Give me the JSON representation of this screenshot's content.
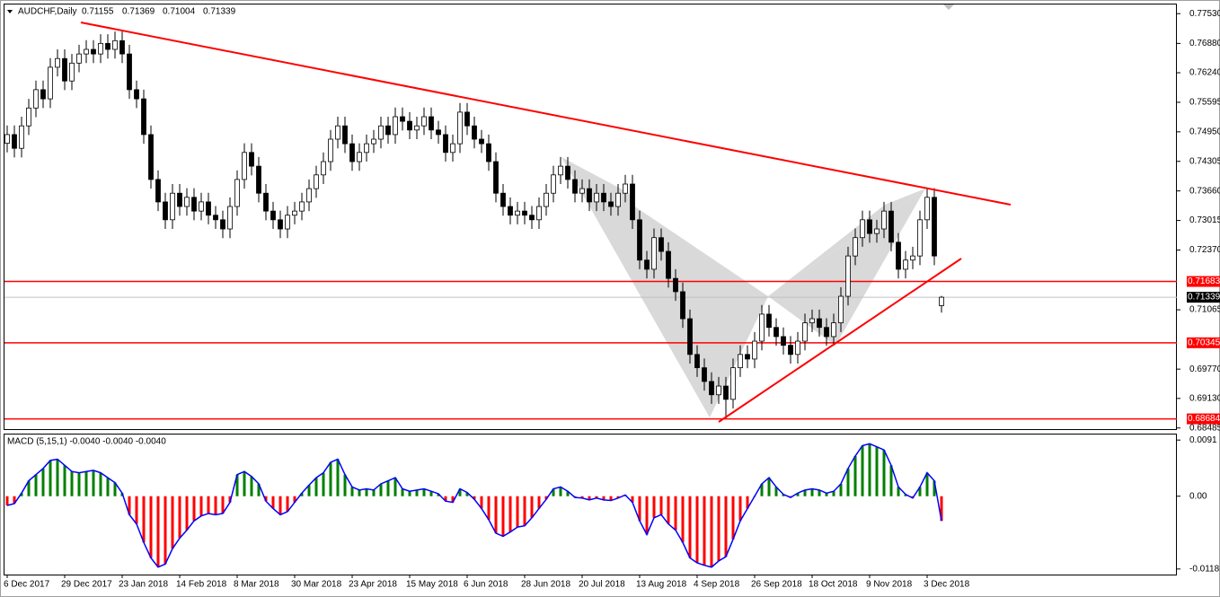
{
  "chart_data": [
    {
      "type": "candlestick",
      "title": "AUDCHF,Daily",
      "categories": [
        "6 Dec 2017",
        null,
        null,
        null,
        null,
        null,
        null,
        null,
        "29 Dec 2017",
        null,
        null,
        null,
        null,
        null,
        null,
        null,
        "23 Jan 2018",
        null,
        null,
        null,
        null,
        null,
        null,
        null,
        "14 Feb 2018",
        null,
        null,
        null,
        null,
        null,
        null,
        null,
        "8 Mar 2018",
        null,
        null,
        null,
        null,
        null,
        null,
        null,
        "30 Mar 2018",
        null,
        null,
        null,
        null,
        null,
        null,
        null,
        "23 Apr 2018",
        null,
        null,
        null,
        null,
        null,
        null,
        null,
        "15 May 2018",
        null,
        null,
        null,
        null,
        null,
        null,
        null,
        "6 Jun 2018",
        null,
        null,
        null,
        null,
        null,
        null,
        null,
        "28 Jun 2018",
        null,
        null,
        null,
        null,
        null,
        null,
        null,
        "20 Jul 2018",
        null,
        null,
        null,
        null,
        null,
        null,
        null,
        "13 Aug 2018",
        null,
        null,
        null,
        null,
        null,
        null,
        null,
        "4 Sep 2018",
        null,
        null,
        null,
        null,
        null,
        null,
        null,
        "26 Sep 2018",
        null,
        null,
        null,
        null,
        null,
        null,
        null,
        "18 Oct 2018",
        null,
        null,
        null,
        null,
        null,
        null,
        null,
        "9 Nov 2018",
        null,
        null,
        null,
        null,
        null,
        null,
        null,
        "3 Dec 2018",
        null,
        null
      ],
      "open": [
        0.747,
        0.7489,
        0.7459,
        0.7508,
        0.7547,
        0.7587,
        0.7567,
        0.7636,
        0.7655,
        0.7606,
        0.7645,
        0.7665,
        0.7675,
        0.7665,
        0.7688,
        0.7675,
        0.7694,
        0.7665,
        0.7587,
        0.7567,
        0.7489,
        0.7391,
        0.7342,
        0.7303,
        0.7361,
        0.7332,
        0.7352,
        0.7322,
        0.7342,
        0.7313,
        0.7303,
        0.7283,
        0.7332,
        0.7391,
        0.745,
        0.742,
        0.7361,
        0.7322,
        0.7303,
        0.7283,
        0.7313,
        0.7322,
        0.7342,
        0.7371,
        0.7401,
        0.743,
        0.7479,
        0.7508,
        0.7469,
        0.743,
        0.745,
        0.7469,
        0.7479,
        0.7508,
        0.7489,
        0.7528,
        0.7518,
        0.7499,
        0.7508,
        0.7528,
        0.7499,
        0.7489,
        0.745,
        0.7469,
        0.7538,
        0.7508,
        0.7479,
        0.7469,
        0.743,
        0.7361,
        0.7332,
        0.7313,
        0.7322,
        0.7313,
        0.7303,
        0.7332,
        0.7361,
        0.7401,
        0.742,
        0.7391,
        0.7361,
        0.7371,
        0.7342,
        0.7361,
        0.7342,
        0.7332,
        0.7361,
        0.7381,
        0.7303,
        0.7215,
        0.7195,
        0.7264,
        0.7234,
        0.7175,
        0.7146,
        0.7087,
        0.7009,
        0.698,
        0.695,
        0.6921,
        0.694,
        0.6911,
        0.698,
        0.7009,
        0.6999,
        0.7038,
        0.7097,
        0.7068,
        0.7048,
        0.7029,
        0.7009,
        0.7038,
        0.7078,
        0.7087,
        0.7068,
        0.7048,
        0.7078,
        0.7136,
        0.7224,
        0.7264,
        0.7303,
        0.7273,
        0.7283,
        0.7322,
        0.7254,
        0.7195,
        0.7215,
        0.7224,
        0.7303,
        0.7352,
        0.71155
      ],
      "high": [
        0.7509,
        0.7509,
        0.7528,
        0.7567,
        0.7607,
        0.7607,
        0.7656,
        0.7675,
        0.7675,
        0.7665,
        0.7685,
        0.7695,
        0.7695,
        0.7708,
        0.7708,
        0.7714,
        0.7714,
        0.7685,
        0.7607,
        0.7587,
        0.7509,
        0.7411,
        0.7362,
        0.7381,
        0.7381,
        0.7372,
        0.7372,
        0.7362,
        0.7362,
        0.7333,
        0.7323,
        0.7352,
        0.7411,
        0.747,
        0.747,
        0.744,
        0.7381,
        0.7342,
        0.7323,
        0.7333,
        0.7342,
        0.7362,
        0.7391,
        0.7421,
        0.745,
        0.7499,
        0.7528,
        0.7528,
        0.7489,
        0.747,
        0.7489,
        0.7499,
        0.7528,
        0.7528,
        0.7548,
        0.7548,
        0.7538,
        0.7528,
        0.7548,
        0.7548,
        0.7519,
        0.7509,
        0.7489,
        0.7558,
        0.7558,
        0.7528,
        0.7499,
        0.7489,
        0.745,
        0.7381,
        0.7352,
        0.7342,
        0.7342,
        0.7333,
        0.7352,
        0.7381,
        0.7421,
        0.744,
        0.744,
        0.7411,
        0.7391,
        0.7391,
        0.7381,
        0.7381,
        0.7362,
        0.7381,
        0.7401,
        0.7401,
        0.7323,
        0.7235,
        0.7284,
        0.7284,
        0.7254,
        0.7195,
        0.7166,
        0.7107,
        0.7029,
        0.7,
        0.697,
        0.696,
        0.696,
        0.7,
        0.7029,
        0.7029,
        0.7058,
        0.7117,
        0.7117,
        0.7088,
        0.7068,
        0.7049,
        0.7058,
        0.7098,
        0.7107,
        0.7107,
        0.7088,
        0.7098,
        0.7156,
        0.7244,
        0.7284,
        0.7323,
        0.7323,
        0.7303,
        0.7342,
        0.7342,
        0.7274,
        0.7235,
        0.7244,
        0.7323,
        0.7372,
        0.7372,
        0.71369
      ],
      "low": [
        0.745,
        0.7439,
        0.7439,
        0.7488,
        0.7527,
        0.7547,
        0.7547,
        0.7616,
        0.7586,
        0.7586,
        0.7625,
        0.7645,
        0.7645,
        0.7645,
        0.7655,
        0.7655,
        0.7645,
        0.7567,
        0.7547,
        0.7469,
        0.7371,
        0.7322,
        0.7283,
        0.7283,
        0.7312,
        0.7312,
        0.7302,
        0.7302,
        0.7293,
        0.7283,
        0.7263,
        0.7263,
        0.7312,
        0.7371,
        0.74,
        0.7341,
        0.7302,
        0.7283,
        0.7263,
        0.7263,
        0.7293,
        0.7302,
        0.7322,
        0.7351,
        0.7381,
        0.741,
        0.7459,
        0.7449,
        0.741,
        0.741,
        0.743,
        0.7449,
        0.7459,
        0.7469,
        0.7469,
        0.7498,
        0.7479,
        0.7479,
        0.7488,
        0.7479,
        0.7469,
        0.743,
        0.743,
        0.7449,
        0.7488,
        0.7459,
        0.7449,
        0.741,
        0.7341,
        0.7312,
        0.7293,
        0.7293,
        0.7293,
        0.7283,
        0.7283,
        0.7312,
        0.7341,
        0.7381,
        0.7371,
        0.7341,
        0.7341,
        0.7322,
        0.7322,
        0.7322,
        0.7312,
        0.7312,
        0.7341,
        0.7283,
        0.7195,
        0.7175,
        0.7175,
        0.7214,
        0.7155,
        0.7126,
        0.7067,
        0.6989,
        0.696,
        0.693,
        0.6901,
        0.6901,
        0.6869,
        0.6891,
        0.696,
        0.6979,
        0.6979,
        0.7018,
        0.7048,
        0.7028,
        0.7009,
        0.6989,
        0.6989,
        0.7018,
        0.7058,
        0.7048,
        0.7028,
        0.7028,
        0.7058,
        0.7116,
        0.7204,
        0.7244,
        0.7253,
        0.7253,
        0.7263,
        0.7234,
        0.7175,
        0.7175,
        0.7195,
        0.7204,
        0.7283,
        0.7204,
        0.71004
      ],
      "close": [
        0.7489,
        0.7459,
        0.7508,
        0.7547,
        0.7587,
        0.7567,
        0.7636,
        0.7655,
        0.7606,
        0.7645,
        0.7665,
        0.7675,
        0.7665,
        0.7688,
        0.7675,
        0.7694,
        0.7665,
        0.7587,
        0.7567,
        0.7489,
        0.7391,
        0.7342,
        0.7303,
        0.7361,
        0.7332,
        0.7352,
        0.7322,
        0.7342,
        0.7313,
        0.7303,
        0.7283,
        0.7332,
        0.7391,
        0.745,
        0.742,
        0.7361,
        0.7322,
        0.7303,
        0.7283,
        0.7313,
        0.7322,
        0.7342,
        0.7371,
        0.7401,
        0.743,
        0.7479,
        0.7508,
        0.7469,
        0.743,
        0.745,
        0.7469,
        0.7479,
        0.7508,
        0.7489,
        0.7528,
        0.7518,
        0.7499,
        0.7508,
        0.7528,
        0.7499,
        0.7489,
        0.745,
        0.7469,
        0.7538,
        0.7508,
        0.7479,
        0.7469,
        0.743,
        0.7361,
        0.7332,
        0.7313,
        0.7322,
        0.7313,
        0.7303,
        0.7332,
        0.7361,
        0.7401,
        0.742,
        0.7391,
        0.7361,
        0.7371,
        0.7342,
        0.7361,
        0.7342,
        0.7332,
        0.7361,
        0.7381,
        0.7303,
        0.7215,
        0.7195,
        0.7264,
        0.7234,
        0.7175,
        0.7146,
        0.7087,
        0.7009,
        0.698,
        0.695,
        0.6921,
        0.694,
        0.6911,
        0.698,
        0.7009,
        0.6999,
        0.7038,
        0.7097,
        0.7068,
        0.7048,
        0.7029,
        0.7009,
        0.7038,
        0.7078,
        0.7087,
        0.7068,
        0.7048,
        0.7078,
        0.7136,
        0.7224,
        0.7264,
        0.7303,
        0.7273,
        0.7283,
        0.7322,
        0.7254,
        0.7195,
        0.7215,
        0.7224,
        0.7303,
        0.7352,
        0.7224,
        0.71339
      ],
      "up_color": "#ffffff",
      "down_color": "#000000",
      "wick_color": "#000000",
      "ylim": [
        0.6846,
        0.7773
      ],
      "yticks": [
        {
          "value": 0.7753,
          "label": "0.77530"
        },
        {
          "value": 0.7688,
          "label": "0.76880"
        },
        {
          "value": 0.7624,
          "label": "0.76240"
        },
        0.75595,
        {
          "value": 0.7495,
          "label": "0.74950"
        },
        0.74305,
        {
          "value": 0.7366,
          "label": "0.73660"
        },
        0.73015,
        {
          "value": 0.7237,
          "label": "0.72370"
        },
        0.71065,
        {
          "value": 0.6977,
          "label": "0.69770"
        },
        {
          "value": 0.6913,
          "label": "0.69130"
        },
        0.68485
      ],
      "hlines": [
        {
          "value": 0.71683,
          "color": "#ff0000"
        },
        {
          "value": 0.71339,
          "color": "#000000",
          "line_color": "#c0c0c0"
        },
        {
          "value": 0.70345,
          "color": "#ff0000"
        },
        {
          "value": 0.68684,
          "color": "#ff0000"
        }
      ]
    },
    {
      "type": "bar",
      "title": "MACD (5,15,1) -0.0040 -0.0040 -0.0040",
      "values": [
        -0.0015,
        -0.0012,
        0.0005,
        0.0025,
        0.0035,
        0.0045,
        0.0058,
        0.006,
        0.005,
        0.004,
        0.0038,
        0.004,
        0.0042,
        0.0038,
        0.003,
        0.0022,
        0.0005,
        -0.003,
        -0.0045,
        -0.0075,
        -0.01,
        -0.0115,
        -0.011,
        -0.0085,
        -0.0068,
        -0.0055,
        -0.004,
        -0.0032,
        -0.0028,
        -0.003,
        -0.0028,
        -0.001,
        0.0035,
        0.004,
        0.0032,
        0.002,
        -0.0008,
        -0.002,
        -0.003,
        -0.0025,
        -0.001,
        0.0005,
        0.0018,
        0.003,
        0.0038,
        0.0055,
        0.006,
        0.0035,
        0.0015,
        0.001,
        0.0012,
        0.001,
        0.002,
        0.0025,
        0.003,
        0.0012,
        0.0008,
        0.001,
        0.0012,
        0.0008,
        0.0004,
        -0.0008,
        -0.001,
        0.0012,
        0.0006,
        -0.0005,
        -0.002,
        -0.0038,
        -0.006,
        -0.0065,
        -0.0058,
        -0.005,
        -0.0048,
        -0.0035,
        -0.002,
        -0.0005,
        0.0012,
        0.0015,
        0.0008,
        -0.0002,
        -0.0003,
        -0.0006,
        -0.0003,
        -0.0006,
        -0.0007,
        -0.0003,
        0.0002,
        -0.001,
        -0.004,
        -0.0062,
        -0.0035,
        -0.003,
        -0.0045,
        -0.0055,
        -0.0075,
        -0.01,
        -0.0108,
        -0.0112,
        -0.0115,
        -0.0105,
        -0.0098,
        -0.007,
        -0.004,
        -0.002,
        0,
        0.002,
        0.003,
        0.0015,
        0.0003,
        -0.0002,
        0.0005,
        0.001,
        0.0012,
        0.001,
        0.0005,
        0.0008,
        0.002,
        0.0045,
        0.0065,
        0.0082,
        0.0085,
        0.008,
        0.0075,
        0.005,
        0.0015,
        0.0003,
        -0.0003,
        0.0015,
        0.0038,
        0.0025,
        -0.004
      ],
      "positive_color": "#008000",
      "negative_color": "#ff0000",
      "line_color": "#0000ff",
      "ylim": [
        -0.0127,
        0.01
      ],
      "yticks": [
        0.0091,
        {
          "value": 0,
          "label": "0.00"
        },
        -0.0118
      ]
    }
  ]
}
